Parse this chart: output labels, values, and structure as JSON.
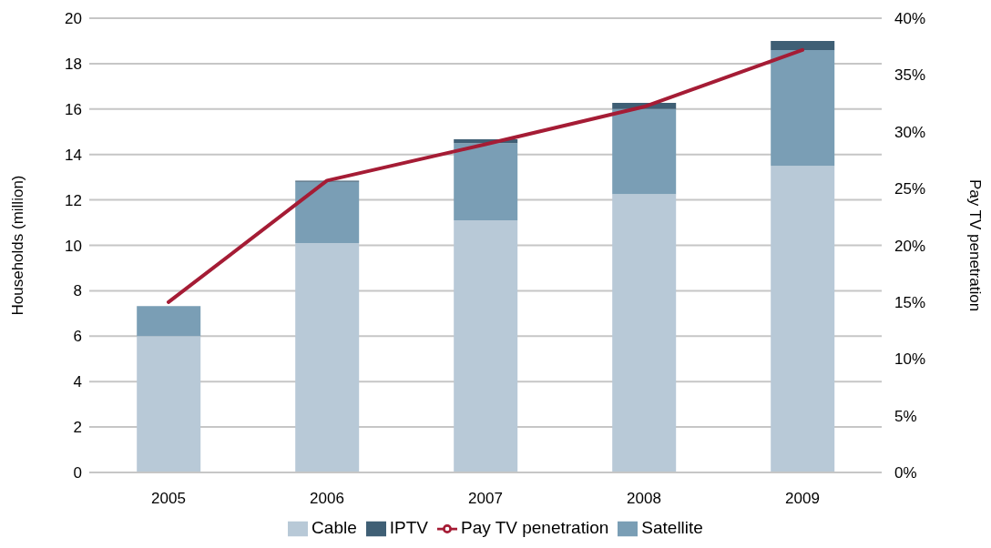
{
  "chart_data": {
    "type": "bar",
    "stacked": true,
    "categories": [
      "2005",
      "2006",
      "2007",
      "2008",
      "2009"
    ],
    "series": [
      {
        "name": "Cable",
        "color": "#b8c9d7",
        "values": [
          6.0,
          10.1,
          11.1,
          12.25,
          13.5
        ]
      },
      {
        "name": "Satellite",
        "color": "#7a9eb5",
        "values": [
          1.33,
          2.7,
          3.4,
          3.75,
          5.1
        ]
      },
      {
        "name": "IPTV",
        "color": "#3f5f75",
        "values": [
          0,
          0.05,
          0.17,
          0.27,
          0.4
        ]
      },
      {
        "name": "Pay TV penetration",
        "type": "line",
        "axis": "y2",
        "color": "#a51c35",
        "values": [
          15.0,
          25.7,
          28.9,
          32.2,
          37.2
        ]
      }
    ],
    "ylabel": "Households (million)",
    "y2label": "Pay TV penetration",
    "ylim": [
      0,
      20
    ],
    "yticks": [
      0,
      2,
      4,
      6,
      8,
      10,
      12,
      14,
      16,
      18,
      20
    ],
    "y2lim": [
      0,
      40
    ],
    "y2ticks": [
      {
        "value": 0,
        "label": "0%"
      },
      {
        "value": 5,
        "label": "5%"
      },
      {
        "value": 10,
        "label": "10%"
      },
      {
        "value": 15,
        "label": "15%"
      },
      {
        "value": 20,
        "label": "20%"
      },
      {
        "value": 25,
        "label": "25%"
      },
      {
        "value": 30,
        "label": "30%"
      },
      {
        "value": 35,
        "label": "35%"
      },
      {
        "value": 40,
        "label": "40%"
      }
    ],
    "grid": "y",
    "legend": "bottom",
    "marker": "none",
    "line_style": "solid"
  }
}
